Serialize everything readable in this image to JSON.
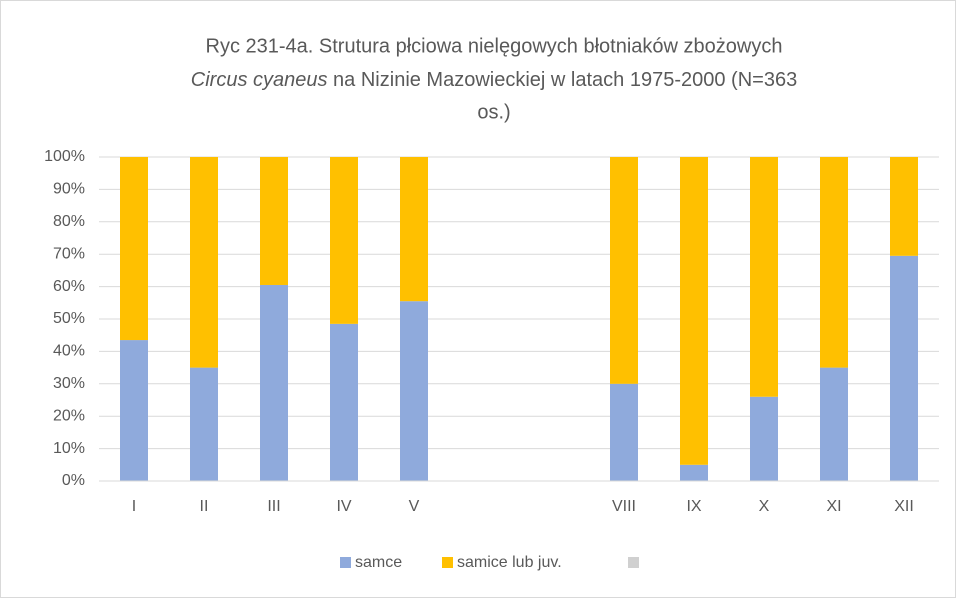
{
  "chart_data": {
    "type": "stacked_bar",
    "title": [
      "Ryc 231-4a. Strutura płciowa nielęgowych błotniaków zbożowych",
      "Circus cyaneus",
      " na Nizinie Mazowieckiej w latach 1975-2000 (N=363",
      "os.)"
    ],
    "categories": [
      "I",
      "II",
      "III",
      "IV",
      "V",
      null,
      null,
      "VIII",
      "IX",
      "X",
      "XI",
      "XII"
    ],
    "series": [
      {
        "name": "samce",
        "color": "#8faadc",
        "values": [
          43.5,
          35,
          60.5,
          48.5,
          55.5,
          null,
          null,
          30,
          5,
          26,
          35,
          69.5
        ]
      },
      {
        "name": "samice lub juv.",
        "color": "#ffc000",
        "values": [
          56.5,
          65,
          39.5,
          51.5,
          44.5,
          null,
          null,
          70,
          95,
          74,
          65,
          30.5
        ]
      },
      {
        "name": null,
        "color": "#d0d0d0",
        "values": [
          null,
          null,
          null,
          null,
          null,
          null,
          null,
          null,
          null,
          null,
          null,
          null
        ]
      }
    ],
    "ylim": [
      0,
      100
    ],
    "yticks": [
      {
        "value": 0,
        "label": "0%"
      },
      {
        "value": 10,
        "label": "10%"
      },
      {
        "value": 20,
        "label": "20%"
      },
      {
        "value": 30,
        "label": "30%"
      },
      {
        "value": 40,
        "label": "40%"
      },
      {
        "value": 50,
        "label": "50%"
      },
      {
        "value": 60,
        "label": "60%"
      },
      {
        "value": 70,
        "label": "70%"
      },
      {
        "value": 80,
        "label": "80%"
      },
      {
        "value": 90,
        "label": "90%"
      },
      {
        "value": 100,
        "label": "100%"
      }
    ],
    "grid": true,
    "legend": "bottom"
  }
}
